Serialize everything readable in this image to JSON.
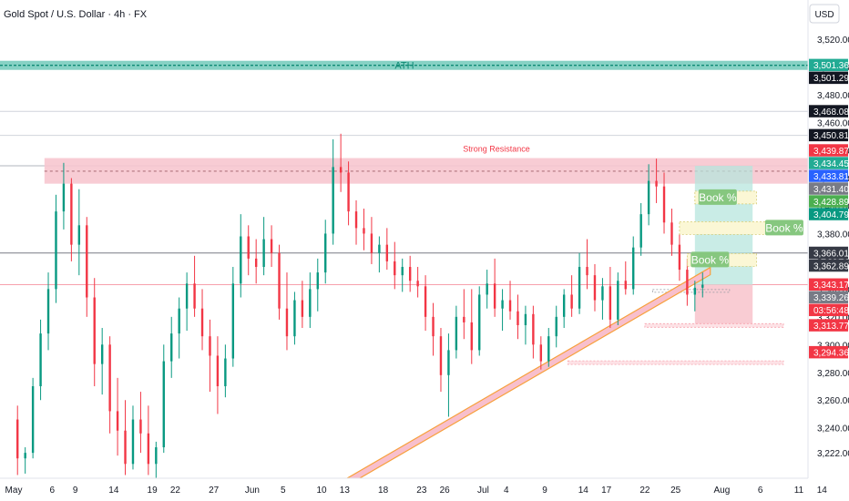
{
  "header": {
    "title": "Gold Spot / U.S. Dollar · 4h · FX",
    "currency": "USD"
  },
  "chart_data": {
    "type": "candlestick",
    "title": "Gold Spot / U.S. Dollar · 4h · FX",
    "currency": "USD",
    "ylim": [
      3205,
      3530
    ],
    "y_ticks": [
      3520,
      3500,
      3480,
      3460,
      3440,
      3420,
      3400,
      3380,
      3360,
      3340,
      3320,
      3300,
      3280,
      3260,
      3240,
      3222
    ],
    "y_tick_labels": [
      "3,520.00",
      "3,500.00",
      "3,480.00",
      "3,460.00",
      "3,440.00",
      "3,420.00",
      "3,400.00",
      "3,380.00",
      "3,360.00",
      "3,340.00",
      "3,320.00",
      "3,300.00",
      "3,280.00",
      "3,260.00",
      "3,240.00",
      "3,222.00"
    ],
    "x_ticks": [
      {
        "day": 0,
        "label": "May"
      },
      {
        "day": 5,
        "label": "6"
      },
      {
        "day": 8,
        "label": "9"
      },
      {
        "day": 13,
        "label": "14"
      },
      {
        "day": 18,
        "label": "19"
      },
      {
        "day": 21,
        "label": "22"
      },
      {
        "day": 26,
        "label": "27"
      },
      {
        "day": 31,
        "label": "Jun"
      },
      {
        "day": 35,
        "label": "5"
      },
      {
        "day": 40,
        "label": "10"
      },
      {
        "day": 43,
        "label": "13"
      },
      {
        "day": 48,
        "label": "18"
      },
      {
        "day": 53,
        "label": "23"
      },
      {
        "day": 56,
        "label": "26"
      },
      {
        "day": 61,
        "label": "Jul"
      },
      {
        "day": 64,
        "label": "4"
      },
      {
        "day": 69,
        "label": "9"
      },
      {
        "day": 74,
        "label": "14"
      },
      {
        "day": 77,
        "label": "17"
      },
      {
        "day": 82,
        "label": "22"
      },
      {
        "day": 86,
        "label": "25"
      },
      {
        "day": 92,
        "label": "Aug"
      },
      {
        "day": 97,
        "label": "6"
      },
      {
        "day": 102,
        "label": "11"
      },
      {
        "day": 105,
        "label": "14"
      }
    ],
    "price_tags": [
      {
        "value": "3,501.36",
        "price": 3501.36,
        "color": "#22ab94"
      },
      {
        "value": "3,501.29",
        "price": 3501.29,
        "color": "#131722"
      },
      {
        "value": "3,468.08",
        "price": 3468.08,
        "color": "#131722"
      },
      {
        "value": "3,450.81",
        "price": 3450.81,
        "color": "#131722"
      },
      {
        "value": "3,439.87",
        "price": 3439.87,
        "color": "#f23645"
      },
      {
        "value": "3,434.45",
        "price": 3434.45,
        "color": "#22ab94"
      },
      {
        "value": "3,433.81",
        "price": 3433.81,
        "color": "#2962ff"
      },
      {
        "value": "3,431.40",
        "price": 3431.4,
        "color": "#787b86"
      },
      {
        "value": "3,428.89",
        "price": 3428.89,
        "color": "#4caf50"
      },
      {
        "value": "3,404.79",
        "price": 3404.79,
        "color": "#089981"
      },
      {
        "value": "3,366.01",
        "price": 3366.01,
        "color": "#363a45"
      },
      {
        "value": "3,362.89",
        "price": 3362.89,
        "color": "#363a45"
      },
      {
        "value": "3,343.17",
        "price": 3343.17,
        "color": "#f23645"
      },
      {
        "value": "03:56:48",
        "price": 3333.6,
        "color": "#f23645"
      },
      {
        "value": "3,339.26",
        "price": 3339.26,
        "color": "#787b86"
      },
      {
        "value": "3,313.77",
        "price": 3313.77,
        "color": "#f23645"
      },
      {
        "value": "3,294.36",
        "price": 3294.36,
        "color": "#f23645"
      }
    ],
    "annotations": {
      "ath": {
        "label": "ATH",
        "price": 3501.3,
        "color": "#22ab94"
      },
      "strong_resistance": {
        "label": "Strong Resistance",
        "top": 3434.45,
        "bottom": 3416,
        "color": "#f7c6cf"
      },
      "book_labels": [
        {
          "text": "Book %",
          "price": 3406,
          "day_start": 88.5,
          "day_end": 96.5
        },
        {
          "text": "Book %",
          "price": 3384,
          "day_start": 86.5,
          "day_end": 98.5
        },
        {
          "text": "Book %",
          "price": 3361,
          "day_start": 87.5,
          "day_end": 96.5
        }
      ],
      "trendline": {
        "day_start": 43,
        "price_start": 3200,
        "day_end": 90.5,
        "price_end": 3353
      },
      "position": {
        "entry": 3343.17,
        "target": 3428.89,
        "stop": 3313.77,
        "day_start": 88.5,
        "day_end": 96
      }
    },
    "levels_horizontal": [
      {
        "price": 3468.08,
        "color": "#d1d4dc"
      },
      {
        "price": 3450.81,
        "color": "#d1d4dc"
      },
      {
        "price": 3428.89,
        "color": "#b2b5be"
      },
      {
        "price": 3366.01,
        "color": "#787b86"
      },
      {
        "price": 3343.17,
        "color": "#f7a1ac"
      }
    ],
    "candles": [
      {
        "o": 3246,
        "h": 3256,
        "l": 3206,
        "c": 3218
      },
      {
        "o": 3218,
        "h": 3226,
        "l": 3207,
        "c": 3222
      },
      {
        "o": 3222,
        "h": 3276,
        "l": 3218,
        "c": 3270
      },
      {
        "o": 3270,
        "h": 3318,
        "l": 3260,
        "c": 3308
      },
      {
        "o": 3308,
        "h": 3352,
        "l": 3296,
        "c": 3340
      },
      {
        "o": 3340,
        "h": 3408,
        "l": 3330,
        "c": 3396
      },
      {
        "o": 3396,
        "h": 3431,
        "l": 3383,
        "c": 3416
      },
      {
        "o": 3416,
        "h": 3420,
        "l": 3360,
        "c": 3372
      },
      {
        "o": 3372,
        "h": 3412,
        "l": 3350,
        "c": 3386
      },
      {
        "o": 3386,
        "h": 3392,
        "l": 3320,
        "c": 3334
      },
      {
        "o": 3334,
        "h": 3348,
        "l": 3270,
        "c": 3286
      },
      {
        "o": 3286,
        "h": 3312,
        "l": 3264,
        "c": 3300
      },
      {
        "o": 3300,
        "h": 3306,
        "l": 3236,
        "c": 3252
      },
      {
        "o": 3252,
        "h": 3276,
        "l": 3220,
        "c": 3238
      },
      {
        "o": 3238,
        "h": 3260,
        "l": 3206,
        "c": 3214
      },
      {
        "o": 3214,
        "h": 3256,
        "l": 3210,
        "c": 3246
      },
      {
        "o": 3246,
        "h": 3266,
        "l": 3222,
        "c": 3236
      },
      {
        "o": 3236,
        "h": 3256,
        "l": 3206,
        "c": 3214
      },
      {
        "o": 3214,
        "h": 3230,
        "l": 3204,
        "c": 3226
      },
      {
        "o": 3226,
        "h": 3300,
        "l": 3222,
        "c": 3288
      },
      {
        "o": 3288,
        "h": 3320,
        "l": 3276,
        "c": 3308
      },
      {
        "o": 3308,
        "h": 3334,
        "l": 3290,
        "c": 3326
      },
      {
        "o": 3326,
        "h": 3352,
        "l": 3310,
        "c": 3344
      },
      {
        "o": 3344,
        "h": 3364,
        "l": 3320,
        "c": 3326
      },
      {
        "o": 3326,
        "h": 3340,
        "l": 3296,
        "c": 3306
      },
      {
        "o": 3306,
        "h": 3318,
        "l": 3266,
        "c": 3292
      },
      {
        "o": 3292,
        "h": 3306,
        "l": 3250,
        "c": 3270
      },
      {
        "o": 3270,
        "h": 3300,
        "l": 3262,
        "c": 3290
      },
      {
        "o": 3290,
        "h": 3356,
        "l": 3284,
        "c": 3344
      },
      {
        "o": 3344,
        "h": 3394,
        "l": 3334,
        "c": 3378
      },
      {
        "o": 3378,
        "h": 3386,
        "l": 3350,
        "c": 3362
      },
      {
        "o": 3362,
        "h": 3376,
        "l": 3344,
        "c": 3356
      },
      {
        "o": 3356,
        "h": 3392,
        "l": 3350,
        "c": 3376
      },
      {
        "o": 3376,
        "h": 3386,
        "l": 3356,
        "c": 3366
      },
      {
        "o": 3366,
        "h": 3372,
        "l": 3318,
        "c": 3326
      },
      {
        "o": 3326,
        "h": 3352,
        "l": 3296,
        "c": 3306
      },
      {
        "o": 3306,
        "h": 3338,
        "l": 3300,
        "c": 3332
      },
      {
        "o": 3332,
        "h": 3346,
        "l": 3312,
        "c": 3320
      },
      {
        "o": 3320,
        "h": 3352,
        "l": 3312,
        "c": 3340
      },
      {
        "o": 3340,
        "h": 3362,
        "l": 3324,
        "c": 3352
      },
      {
        "o": 3352,
        "h": 3390,
        "l": 3344,
        "c": 3380
      },
      {
        "o": 3380,
        "h": 3448,
        "l": 3372,
        "c": 3428
      },
      {
        "o": 3428,
        "h": 3452,
        "l": 3410,
        "c": 3424
      },
      {
        "o": 3424,
        "h": 3432,
        "l": 3386,
        "c": 3396
      },
      {
        "o": 3396,
        "h": 3404,
        "l": 3372,
        "c": 3384
      },
      {
        "o": 3384,
        "h": 3398,
        "l": 3368,
        "c": 3380
      },
      {
        "o": 3380,
        "h": 3392,
        "l": 3358,
        "c": 3366
      },
      {
        "o": 3366,
        "h": 3378,
        "l": 3352,
        "c": 3372
      },
      {
        "o": 3372,
        "h": 3384,
        "l": 3354,
        "c": 3360
      },
      {
        "o": 3360,
        "h": 3374,
        "l": 3340,
        "c": 3350
      },
      {
        "o": 3350,
        "h": 3362,
        "l": 3338,
        "c": 3356
      },
      {
        "o": 3356,
        "h": 3364,
        "l": 3338,
        "c": 3346
      },
      {
        "o": 3346,
        "h": 3356,
        "l": 3334,
        "c": 3342
      },
      {
        "o": 3342,
        "h": 3350,
        "l": 3310,
        "c": 3320
      },
      {
        "o": 3320,
        "h": 3330,
        "l": 3292,
        "c": 3306
      },
      {
        "o": 3306,
        "h": 3312,
        "l": 3266,
        "c": 3278
      },
      {
        "o": 3278,
        "h": 3308,
        "l": 3248,
        "c": 3296
      },
      {
        "o": 3296,
        "h": 3328,
        "l": 3290,
        "c": 3320
      },
      {
        "o": 3320,
        "h": 3340,
        "l": 3304,
        "c": 3316
      },
      {
        "o": 3316,
        "h": 3340,
        "l": 3286,
        "c": 3296
      },
      {
        "o": 3296,
        "h": 3342,
        "l": 3292,
        "c": 3336
      },
      {
        "o": 3336,
        "h": 3354,
        "l": 3326,
        "c": 3344
      },
      {
        "o": 3344,
        "h": 3362,
        "l": 3320,
        "c": 3326
      },
      {
        "o": 3326,
        "h": 3340,
        "l": 3310,
        "c": 3332
      },
      {
        "o": 3332,
        "h": 3346,
        "l": 3318,
        "c": 3324
      },
      {
        "o": 3324,
        "h": 3336,
        "l": 3304,
        "c": 3314
      },
      {
        "o": 3314,
        "h": 3328,
        "l": 3300,
        "c": 3322
      },
      {
        "o": 3322,
        "h": 3328,
        "l": 3290,
        "c": 3300
      },
      {
        "o": 3300,
        "h": 3306,
        "l": 3282,
        "c": 3288
      },
      {
        "o": 3288,
        "h": 3312,
        "l": 3284,
        "c": 3306
      },
      {
        "o": 3306,
        "h": 3328,
        "l": 3298,
        "c": 3320
      },
      {
        "o": 3320,
        "h": 3340,
        "l": 3312,
        "c": 3336
      },
      {
        "o": 3336,
        "h": 3350,
        "l": 3320,
        "c": 3326
      },
      {
        "o": 3326,
        "h": 3366,
        "l": 3322,
        "c": 3356
      },
      {
        "o": 3356,
        "h": 3376,
        "l": 3340,
        "c": 3350
      },
      {
        "o": 3350,
        "h": 3358,
        "l": 3324,
        "c": 3332
      },
      {
        "o": 3332,
        "h": 3348,
        "l": 3318,
        "c": 3342
      },
      {
        "o": 3342,
        "h": 3356,
        "l": 3312,
        "c": 3318
      },
      {
        "o": 3318,
        "h": 3352,
        "l": 3314,
        "c": 3346
      },
      {
        "o": 3346,
        "h": 3360,
        "l": 3336,
        "c": 3340
      },
      {
        "o": 3340,
        "h": 3378,
        "l": 3336,
        "c": 3370
      },
      {
        "o": 3370,
        "h": 3402,
        "l": 3364,
        "c": 3394
      },
      {
        "o": 3394,
        "h": 3430,
        "l": 3386,
        "c": 3418
      },
      {
        "o": 3418,
        "h": 3434,
        "l": 3402,
        "c": 3414
      },
      {
        "o": 3414,
        "h": 3424,
        "l": 3380,
        "c": 3388
      },
      {
        "o": 3388,
        "h": 3398,
        "l": 3364,
        "c": 3372
      },
      {
        "o": 3372,
        "h": 3380,
        "l": 3346,
        "c": 3354
      },
      {
        "o": 3354,
        "h": 3362,
        "l": 3328,
        "c": 3336
      },
      {
        "o": 3336,
        "h": 3346,
        "l": 3324,
        "c": 3341
      },
      {
        "o": 3341,
        "h": 3352,
        "l": 3334,
        "c": 3343.17
      }
    ]
  }
}
